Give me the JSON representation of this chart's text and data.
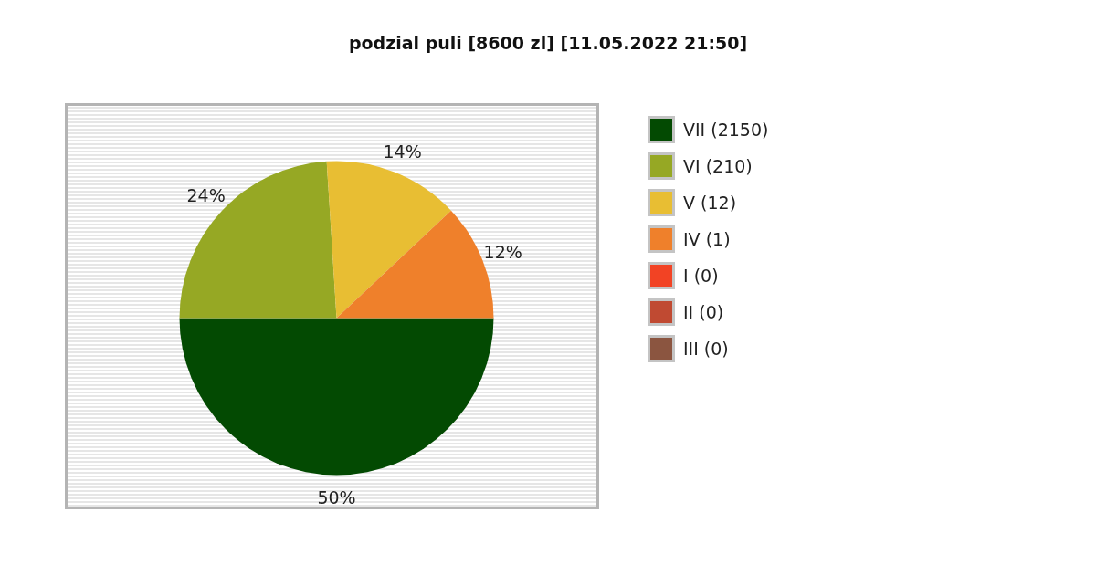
{
  "chart_data": {
    "type": "pie",
    "title": "podzial puli [8600 zl] [11.05.2022 21:50]",
    "categories": [
      "VII (2150)",
      "VI (210)",
      "V (12)",
      "IV (1)",
      "I (0)",
      "II (0)",
      "III (0)"
    ],
    "values": [
      50,
      24,
      14,
      12,
      0,
      0,
      0
    ],
    "colors": [
      "#034a02",
      "#96a824",
      "#e8be33",
      "#ef802b",
      "#f24324",
      "#c04a32",
      "#8b5540"
    ],
    "value_labels": [
      "50%",
      "24%",
      "14%",
      "12%",
      null,
      null,
      null
    ],
    "legend": "right"
  }
}
